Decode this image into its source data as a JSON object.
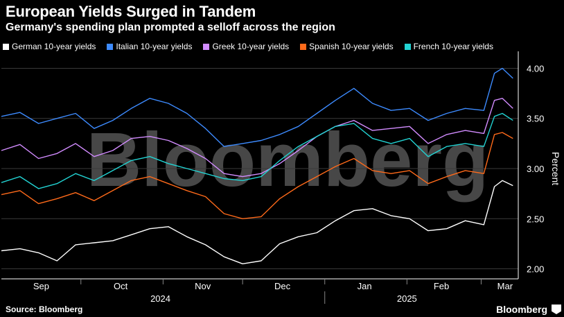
{
  "title": "European Yields Surged in Tandem",
  "subtitle": "Germany's spending plan prompted a selloff across the region",
  "source": "Source: Bloomberg",
  "brand": "Bloomberg",
  "watermark": "Bloomberg",
  "chart_data": {
    "type": "line",
    "ylabel": "Percent",
    "ylim": [
      1.9,
      4.1
    ],
    "yticks": [
      2.0,
      2.5,
      3.0,
      3.5,
      4.0
    ],
    "ytick_labels": [
      "2.00",
      "2.50",
      "3.00",
      "3.50",
      "4.00"
    ],
    "xlim": [
      "2024-09-01",
      "2025-03-15"
    ],
    "month_ticks": [
      {
        "label": "Sep",
        "date": "2024-09-16"
      },
      {
        "label": "Oct",
        "date": "2024-10-16"
      },
      {
        "label": "Nov",
        "date": "2024-11-16"
      },
      {
        "label": "Dec",
        "date": "2024-12-16"
      },
      {
        "label": "Jan",
        "date": "2025-01-16"
      },
      {
        "label": "Feb",
        "date": "2025-02-14"
      },
      {
        "label": "Mar",
        "date": "2025-03-10"
      }
    ],
    "year_labels": [
      {
        "label": "2024",
        "date": "2024-10-31"
      },
      {
        "label": "2025",
        "date": "2025-02-01"
      }
    ],
    "x": [
      "2024-09-01",
      "2024-09-08",
      "2024-09-15",
      "2024-09-22",
      "2024-09-29",
      "2024-10-06",
      "2024-10-13",
      "2024-10-20",
      "2024-10-27",
      "2024-11-03",
      "2024-11-10",
      "2024-11-17",
      "2024-11-24",
      "2024-12-01",
      "2024-12-08",
      "2024-12-15",
      "2024-12-22",
      "2024-12-29",
      "2025-01-05",
      "2025-01-12",
      "2025-01-19",
      "2025-01-26",
      "2025-02-02",
      "2025-02-09",
      "2025-02-16",
      "2025-02-23",
      "2025-03-02",
      "2025-03-06",
      "2025-03-09",
      "2025-03-13"
    ],
    "series": [
      {
        "name": "German 10-year yields",
        "color": "#ffffff",
        "values": [
          2.18,
          2.2,
          2.16,
          2.08,
          2.24,
          2.26,
          2.28,
          2.34,
          2.4,
          2.42,
          2.32,
          2.24,
          2.12,
          2.05,
          2.08,
          2.25,
          2.32,
          2.36,
          2.48,
          2.58,
          2.6,
          2.53,
          2.5,
          2.38,
          2.4,
          2.48,
          2.44,
          2.82,
          2.88,
          2.83
        ]
      },
      {
        "name": "Italian 10-year yields",
        "color": "#3d8bff",
        "values": [
          3.52,
          3.56,
          3.45,
          3.5,
          3.55,
          3.4,
          3.48,
          3.6,
          3.7,
          3.65,
          3.55,
          3.4,
          3.22,
          3.25,
          3.28,
          3.34,
          3.42,
          3.55,
          3.68,
          3.8,
          3.65,
          3.58,
          3.6,
          3.48,
          3.55,
          3.6,
          3.58,
          3.95,
          4.0,
          3.9
        ]
      },
      {
        "name": "Greek 10-year yields",
        "color": "#d28cff",
        "values": [
          3.18,
          3.24,
          3.1,
          3.15,
          3.25,
          3.12,
          3.18,
          3.3,
          3.32,
          3.28,
          3.2,
          3.1,
          2.95,
          2.92,
          2.95,
          3.05,
          3.18,
          3.32,
          3.42,
          3.48,
          3.38,
          3.4,
          3.42,
          3.25,
          3.34,
          3.38,
          3.35,
          3.68,
          3.7,
          3.6
        ]
      },
      {
        "name": "Spanish 10-year yields",
        "color": "#ff6a1a",
        "values": [
          2.74,
          2.78,
          2.65,
          2.7,
          2.76,
          2.68,
          2.78,
          2.88,
          2.92,
          2.85,
          2.78,
          2.72,
          2.55,
          2.5,
          2.52,
          2.7,
          2.82,
          2.92,
          3.02,
          3.1,
          2.98,
          2.95,
          2.98,
          2.85,
          2.92,
          2.98,
          2.95,
          3.34,
          3.36,
          3.3
        ]
      },
      {
        "name": "French 10-year yields",
        "color": "#22d3d3",
        "values": [
          2.86,
          2.92,
          2.8,
          2.85,
          2.95,
          2.88,
          2.98,
          3.08,
          3.12,
          3.05,
          3.0,
          2.95,
          2.9,
          2.88,
          2.92,
          3.08,
          3.22,
          3.32,
          3.42,
          3.45,
          3.3,
          3.25,
          3.3,
          3.12,
          3.22,
          3.25,
          3.22,
          3.52,
          3.55,
          3.48
        ]
      }
    ]
  }
}
